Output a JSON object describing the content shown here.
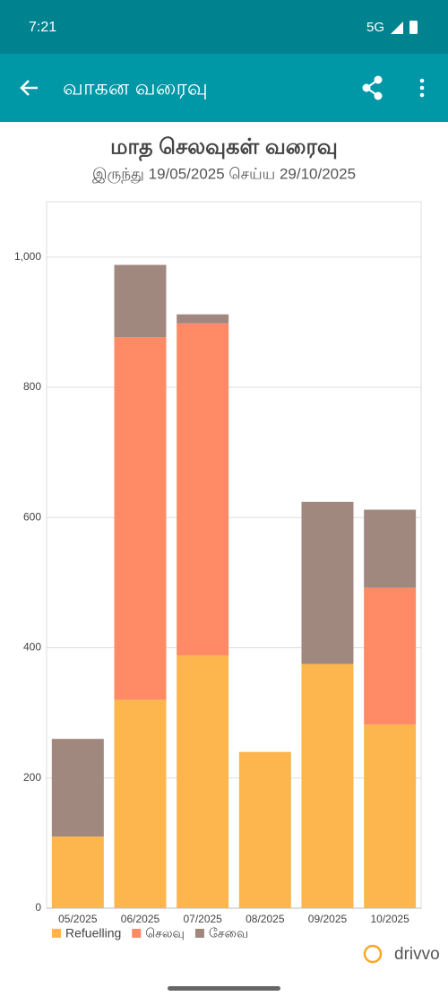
{
  "status_bar": {
    "time": "7:21",
    "network": "5G"
  },
  "app_bar": {
    "title": "வாகன வரைவு"
  },
  "chart_data": {
    "type": "stacked_bar",
    "title": "மாத செலவுகள் வரைவு",
    "subtitle": "இருந்து 19/05/2025 செய்ய 29/10/2025",
    "categories": [
      "05/2025",
      "06/2025",
      "07/2025",
      "08/2025",
      "09/2025",
      "10/2025"
    ],
    "series": [
      {
        "name": "Refuelling",
        "color": "#fdb64e",
        "values": [
          110,
          320,
          388,
          240,
          375,
          282
        ]
      },
      {
        "name": "செலவு",
        "color": "#ff8a65",
        "values": [
          0,
          557,
          510,
          0,
          0,
          210
        ]
      },
      {
        "name": "சேவை",
        "color": "#a1887f",
        "values": [
          150,
          111,
          14,
          0,
          249,
          120
        ]
      }
    ],
    "ylim": [
      0,
      1085
    ],
    "yticks": [
      0,
      200,
      400,
      600,
      800,
      {
        "value": 1000,
        "label": "1,000"
      }
    ],
    "grid": true
  },
  "brand": "drivvo"
}
